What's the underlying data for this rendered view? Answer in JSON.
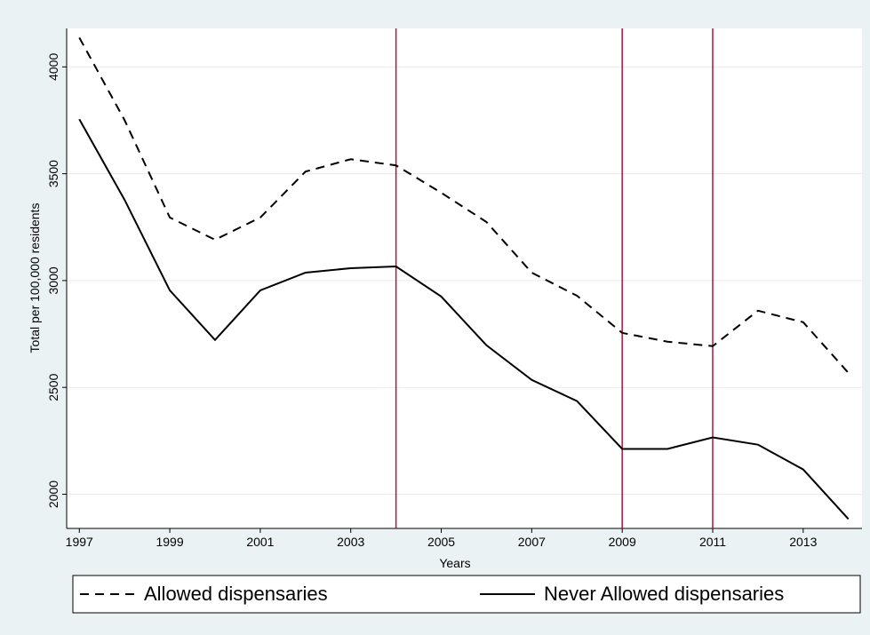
{
  "chart_data": {
    "type": "line",
    "x_label": "Years",
    "y_label": "Total per 100,000 residents",
    "x": [
      1997,
      1998,
      1999,
      2000,
      2001,
      2002,
      2003,
      2004,
      2005,
      2006,
      2007,
      2008,
      2009,
      2010,
      2011,
      2012,
      2013,
      2014
    ],
    "series": [
      {
        "name": "Allowed dispensaries",
        "color": "#000000",
        "dash": true,
        "values": [
          4137,
          3751,
          3295,
          3191,
          3295,
          3510,
          3568,
          3539,
          3411,
          3274,
          3037,
          2929,
          2755,
          2714,
          2693,
          2859,
          2805,
          2568
        ]
      },
      {
        "name": "Never Allowed dispensaries",
        "color": "#000000",
        "dash": false,
        "values": [
          3755,
          3378,
          2954,
          2722,
          2954,
          3037,
          3058,
          3066,
          2925,
          2697,
          2535,
          2436,
          2212,
          2212,
          2266,
          2232,
          2116,
          1884
        ]
      }
    ],
    "xlim": [
      1996.72,
      2014.3
    ],
    "ylim": [
      1840,
      4180
    ],
    "xticks": [
      1997,
      1999,
      2001,
      2003,
      2005,
      2007,
      2009,
      2011,
      2013
    ],
    "yticks": [
      2000,
      2500,
      3000,
      3500,
      4000
    ],
    "grid": true,
    "vlines": [
      2004,
      2009,
      2011
    ],
    "vline_color": "#b3123f",
    "legend": "bottom"
  }
}
